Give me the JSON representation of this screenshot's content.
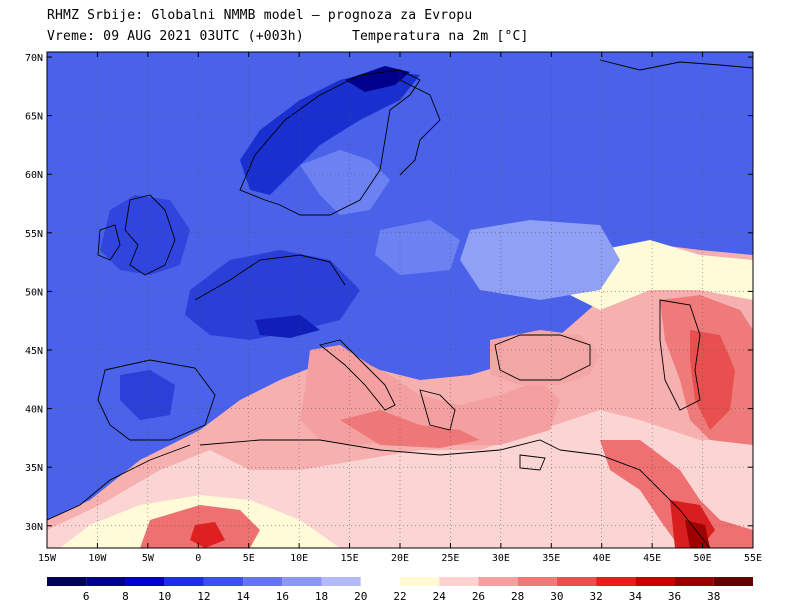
{
  "header": {
    "line1": "RHMZ Srbije: Globalni NMMB model — prognoza za Evropu",
    "line2_left": "Vreme: 09 AUG 2021 03UTC (+003h)",
    "line2_right": "Temperatura na 2m [°C]"
  },
  "axes": {
    "lat_labels": [
      "70N",
      "65N",
      "60N",
      "55N",
      "50N",
      "45N",
      "40N",
      "35N",
      "30N"
    ],
    "lon_labels": [
      "15W",
      "10W",
      "5W",
      "0",
      "5E",
      "10E",
      "15E",
      "20E",
      "25E",
      "30E",
      "35E",
      "40E",
      "45E",
      "50E",
      "55E"
    ]
  },
  "colorbar": {
    "labels": [
      "6",
      "8",
      "10",
      "12",
      "14",
      "16",
      "18",
      "20",
      "22",
      "24",
      "26",
      "28",
      "30",
      "32",
      "34",
      "36",
      "38"
    ],
    "colors": [
      "#00005a",
      "#00008c",
      "#0000c8",
      "#1e2ee6",
      "#3c50f0",
      "#6474f5",
      "#8c96f8",
      "#b4baf8",
      "#ffffff",
      "#fffad2",
      "#ffd2d2",
      "#f5a0a0",
      "#f07878",
      "#eb5050",
      "#e61e1e",
      "#c80000",
      "#960000",
      "#640000"
    ]
  },
  "palette": {
    "cold_deep": "#1a2fd0",
    "cold": "#3c55e6",
    "mid_blue": "#5a73f0",
    "light_blue": "#8fa0f5",
    "pale": "#fffbd8",
    "warm": "#f7aaaa",
    "hot": "#ee6f6f",
    "very_hot": "#e02020",
    "extreme": "#a00000"
  }
}
